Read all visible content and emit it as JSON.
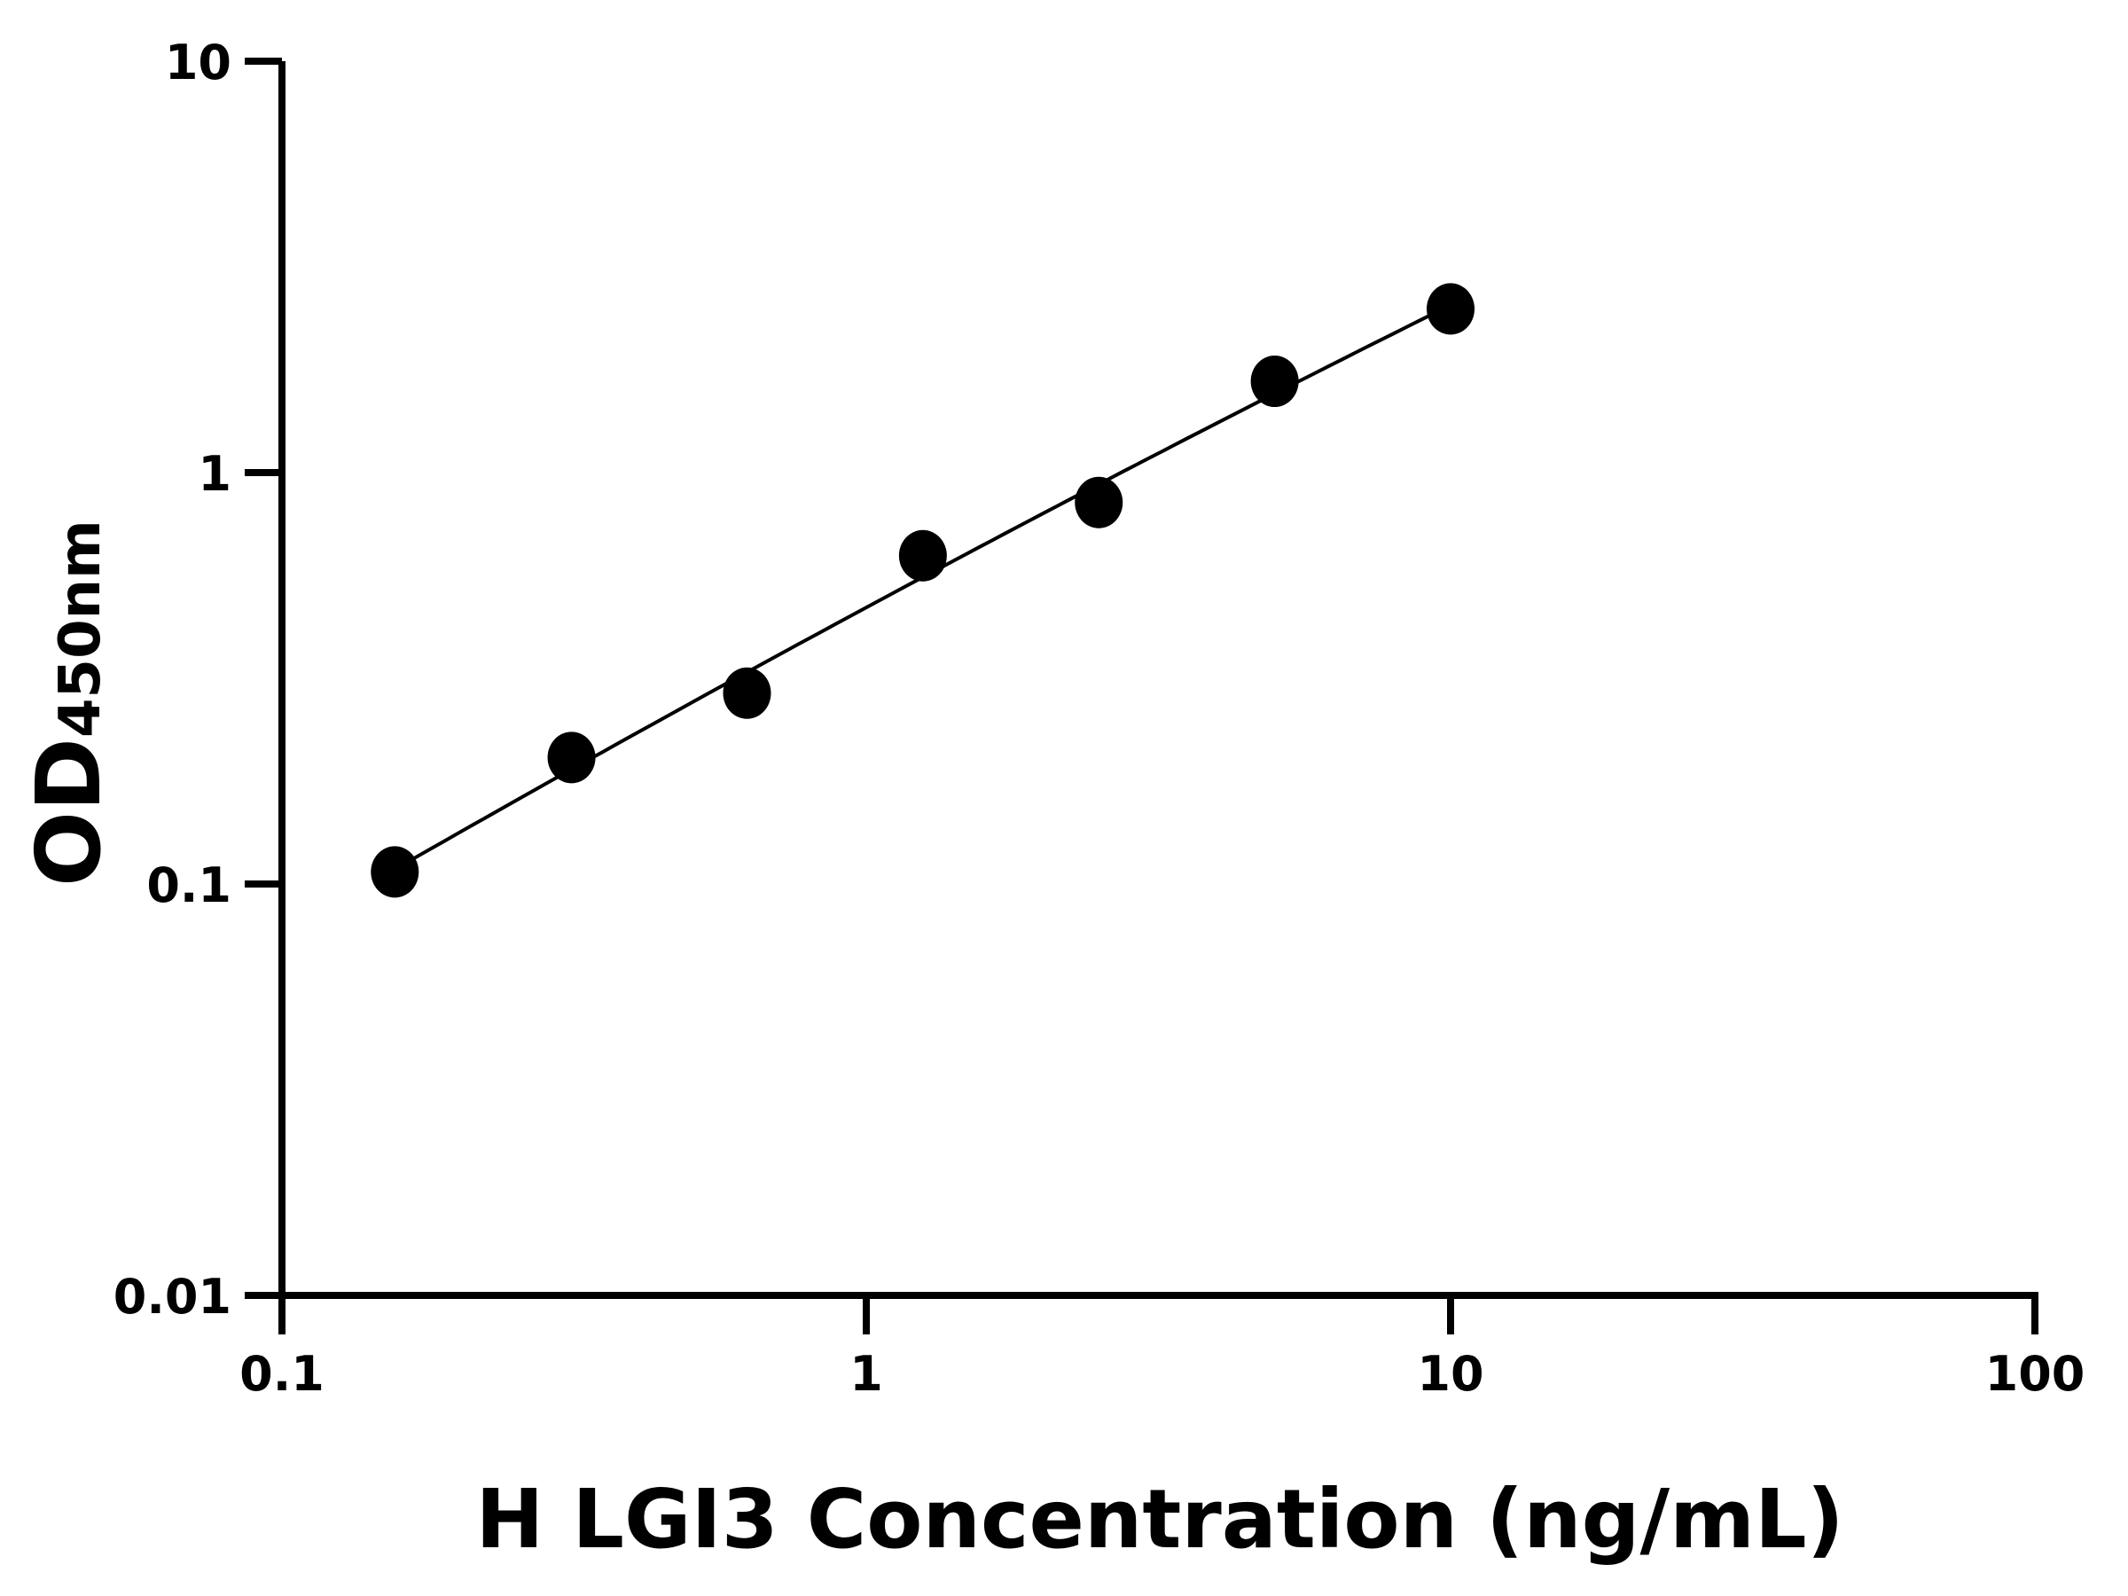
{
  "chart_data": {
    "type": "scatter",
    "title": "",
    "xlabel": "H LGI3 Concentration (ng/mL)",
    "ylabel": "OD",
    "ylabel_subscript": "450nm",
    "x_scale": "log",
    "y_scale": "log",
    "xlim": [
      0.1,
      100
    ],
    "ylim": [
      0.01,
      10
    ],
    "x_ticks": [
      "0.1",
      "1",
      "10",
      "100"
    ],
    "y_ticks": [
      "0.01",
      "0.1",
      "1",
      "10"
    ],
    "grid": false,
    "legend": "none",
    "series": [
      {
        "x": [
          0.156,
          0.313,
          0.625,
          1.25,
          2.5,
          5,
          10
        ],
        "y": [
          0.107,
          0.203,
          0.291,
          0.628,
          0.846,
          1.667,
          2.5
        ],
        "marker": "circle",
        "color": "#000000",
        "fit_curve": true
      }
    ]
  }
}
